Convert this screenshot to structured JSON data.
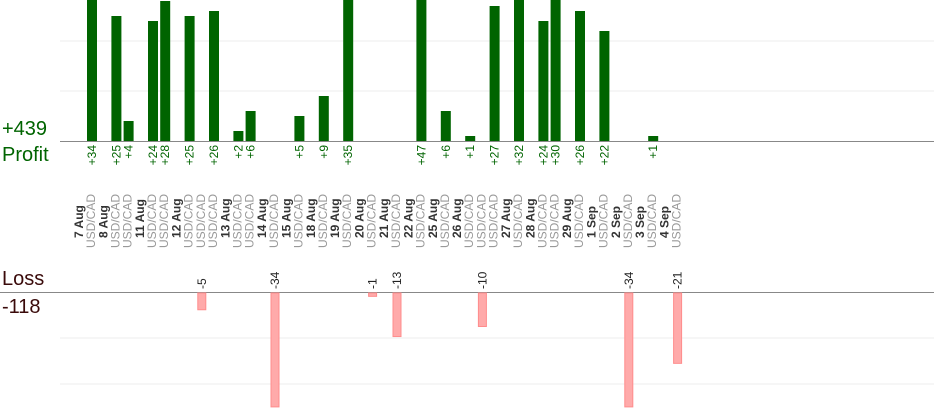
{
  "summary": {
    "profit_total": "+439",
    "profit_label": "Profit",
    "loss_label": "Loss",
    "loss_total": "-118"
  },
  "colors": {
    "profit_bar": "#006400",
    "profit_text": "#006400",
    "loss_bar": "#ffaaaa",
    "loss_bar_edge": "#ff8c8c",
    "date_text": "#333333",
    "pair_text": "#999999",
    "axis": "#888888",
    "grid": "#eeeeee"
  },
  "chart_data": {
    "type": "bar",
    "subtype": "profit-loss trade columns",
    "grid": true,
    "profit_ylim": [
      0,
      50
    ],
    "loss_ylim": [
      -40,
      0
    ],
    "days": [
      {
        "date": "7 Aug",
        "pairs": [
          "USD/CAD"
        ],
        "trades": [
          {
            "label": "+34",
            "value": 34
          }
        ]
      },
      {
        "date": "8 Aug",
        "pairs": [
          "USD/CAD",
          "USD/CAD"
        ],
        "trades": [
          {
            "label": "+25",
            "value": 25
          },
          {
            "label": "+4",
            "value": 4
          }
        ]
      },
      {
        "date": "11 Aug",
        "pairs": [
          "USD/CAD",
          "USD/CAD"
        ],
        "trades": [
          {
            "label": "+24",
            "value": 24
          },
          {
            "label": "+28",
            "value": 28
          }
        ]
      },
      {
        "date": "12 Aug",
        "pairs": [
          "USD/CAD",
          "USD/CAD",
          "USD/CAD"
        ],
        "trades": [
          {
            "label": "+25",
            "value": 25
          },
          {
            "label": "-5",
            "value": -5
          },
          {
            "label": "+26",
            "value": 26
          }
        ]
      },
      {
        "date": "13 Aug",
        "pairs": [
          "USD/CAD",
          "USD/CAD"
        ],
        "trades": [
          {
            "label": "+2",
            "value": 2
          },
          {
            "label": "+6",
            "value": 6
          }
        ]
      },
      {
        "date": "14 Aug",
        "pairs": [
          "USD/CAD"
        ],
        "trades": [
          {
            "label": "-34",
            "value": -34
          }
        ]
      },
      {
        "date": "15 Aug",
        "pairs": [
          "USD/CAD"
        ],
        "trades": [
          {
            "label": "+5",
            "value": 5
          }
        ]
      },
      {
        "date": "18 Aug",
        "pairs": [
          "USD/CAD"
        ],
        "trades": [
          {
            "label": "+9",
            "value": 9
          }
        ]
      },
      {
        "date": "19 Aug",
        "pairs": [
          "USD/CAD"
        ],
        "trades": [
          {
            "label": "+35",
            "value": 35
          }
        ]
      },
      {
        "date": "20 Aug",
        "pairs": [
          "USD/CAD"
        ],
        "trades": [
          {
            "label": "-1",
            "value": -1
          }
        ]
      },
      {
        "date": "21 Aug",
        "pairs": [
          "USD/CAD"
        ],
        "trades": [
          {
            "label": "-13",
            "value": -13
          }
        ]
      },
      {
        "date": "22 Aug",
        "pairs": [
          "USD/CAD"
        ],
        "trades": [
          {
            "label": "+47",
            "value": 47
          }
        ]
      },
      {
        "date": "25 Aug",
        "pairs": [
          "USD/CAD"
        ],
        "trades": [
          {
            "label": "+6",
            "value": 6
          }
        ]
      },
      {
        "date": "26 Aug",
        "pairs": [
          "USD/CAD",
          "USD/CAD",
          "USD/CAD"
        ],
        "trades": [
          {
            "label": "+1",
            "value": 1
          },
          {
            "label": "-10",
            "value": -10
          },
          {
            "label": "+27",
            "value": 27
          }
        ]
      },
      {
        "date": "27 Aug",
        "pairs": [
          "USD/CAD"
        ],
        "trades": [
          {
            "label": "+32",
            "value": 32
          }
        ]
      },
      {
        "date": "28 Aug",
        "pairs": [
          "USD/CAD",
          "USD/CAD"
        ],
        "trades": [
          {
            "label": "+24",
            "value": 24
          },
          {
            "label": "+30",
            "value": 30
          }
        ]
      },
      {
        "date": "29 Aug",
        "pairs": [
          "USD/CAD"
        ],
        "trades": [
          {
            "label": "+26",
            "value": 26
          }
        ]
      },
      {
        "date": "1 Sep",
        "pairs": [
          "USD/CAD"
        ],
        "trades": [
          {
            "label": "+22",
            "value": 22
          }
        ]
      },
      {
        "date": "2 Sep",
        "pairs": [
          "USD/CAD"
        ],
        "trades": [
          {
            "label": "-34",
            "value": -34
          }
        ]
      },
      {
        "date": "3 Sep",
        "pairs": [
          "USD/CAD"
        ],
        "trades": [
          {
            "label": "+1",
            "value": 1
          }
        ]
      },
      {
        "date": "4 Sep",
        "pairs": [
          "USD/CAD"
        ],
        "trades": [
          {
            "label": "-21",
            "value": -21
          }
        ]
      }
    ]
  }
}
